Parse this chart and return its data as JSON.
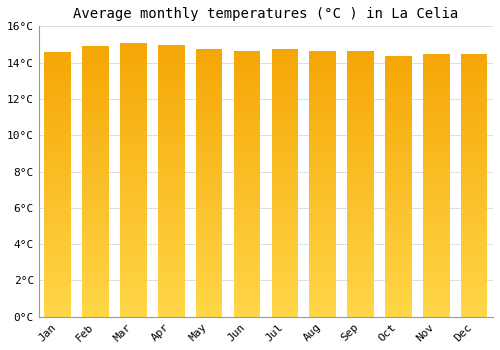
{
  "months": [
    "Jan",
    "Feb",
    "Mar",
    "Apr",
    "May",
    "Jun",
    "Jul",
    "Aug",
    "Sep",
    "Oct",
    "Nov",
    "Dec"
  ],
  "values": [
    14.6,
    14.9,
    15.1,
    14.95,
    14.75,
    14.65,
    14.75,
    14.65,
    14.65,
    14.35,
    14.45,
    14.45
  ],
  "bar_color_top": "#F5A800",
  "bar_color_bottom": "#FFD84D",
  "bar_edge_color": "#cccccc",
  "title": "Average monthly temperatures (°C ) in La Celia",
  "title_fontsize": 10,
  "ylim": [
    0,
    16
  ],
  "ytick_interval": 2,
  "background_color": "#ffffff",
  "grid_color": "#dddddd",
  "tick_label_fontsize": 8,
  "title_font": "monospace",
  "bar_width": 0.7
}
